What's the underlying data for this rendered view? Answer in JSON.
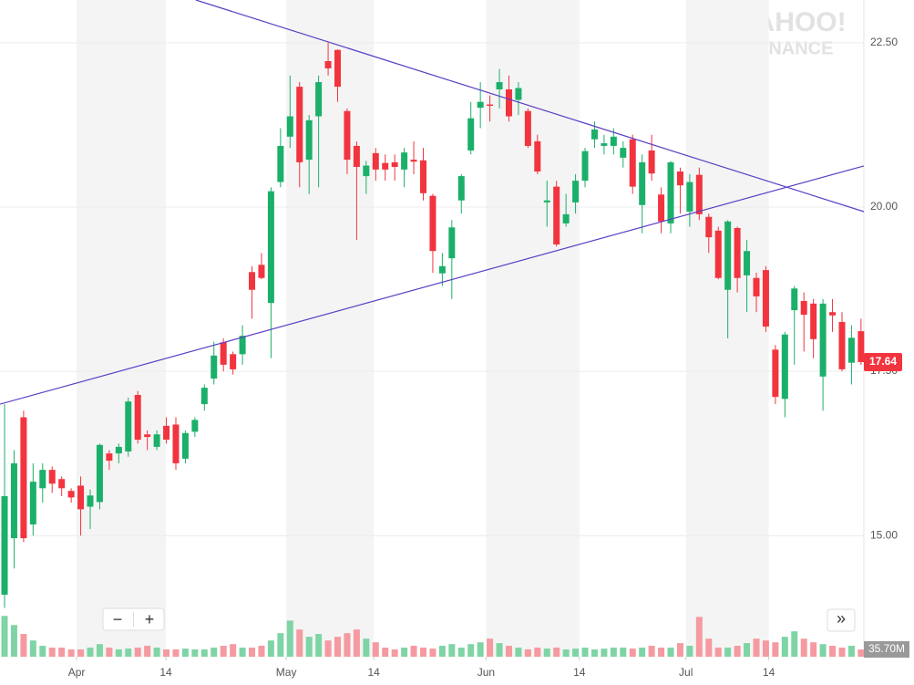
{
  "chart_data": {
    "type": "candlestick",
    "watermark": [
      "YAHOO!",
      "FINANCE"
    ],
    "controls": [
      "−",
      "+",
      "»"
    ],
    "up_color": "#1bb06a",
    "down_color": "#f2343f",
    "volume_up_color": "#7fd4a6",
    "volume_down_color": "#f59aa0",
    "x": [
      0,
      1,
      2,
      3,
      4,
      5,
      6,
      7,
      8,
      9,
      10,
      11,
      12,
      13,
      14,
      15,
      16,
      17,
      18,
      19,
      20,
      21,
      22,
      23,
      24,
      25,
      26,
      27,
      28,
      29,
      30,
      31,
      32,
      33,
      34,
      35,
      36,
      37,
      38,
      39,
      40,
      41,
      42,
      43,
      44,
      45,
      46,
      47,
      48,
      49,
      50,
      51,
      52,
      53,
      54,
      55,
      56,
      57,
      58,
      59,
      60,
      61,
      62,
      63,
      64,
      65,
      66,
      67,
      68,
      69,
      70,
      71,
      72,
      73,
      74,
      75,
      76,
      77,
      78,
      79,
      80,
      81,
      82,
      83,
      84,
      85,
      86,
      87,
      88,
      89,
      90
    ],
    "open": [
      14.1,
      14.96,
      16.8,
      15.17,
      15.72,
      16.0,
      15.86,
      15.68,
      15.76,
      15.44,
      15.51,
      16.25,
      16.25,
      16.28,
      17.14,
      16.54,
      16.35,
      16.67,
      16.69,
      16.17,
      16.58,
      17.0,
      17.39,
      17.94,
      17.76,
      17.76,
      19.01,
      19.12,
      18.54,
      20.38,
      21.07,
      21.83,
      20.72,
      21.38,
      22.22,
      22.39,
      21.46,
      20.93,
      20.47,
      20.82,
      20.67,
      20.68,
      20.57,
      20.72,
      20.71,
      20.17,
      18.99,
      19.22,
      20.1,
      20.86,
      21.51,
      21.56,
      21.79,
      21.79,
      21.63,
      21.46,
      21.0,
      20.07,
      20.31,
      19.75,
      20.07,
      20.4,
      21.03,
      20.93,
      20.93,
      20.75,
      21.03,
      20.03,
      20.86,
      20.19,
      19.75,
      20.54,
      19.93,
      20.49,
      19.85,
      19.64,
      18.74,
      19.68,
      18.96,
      18.92,
      19.04,
      17.83,
      17.08,
      18.43,
      18.57,
      18.53,
      17.42,
      18.4,
      18.25,
      17.63,
      18.11
    ],
    "high": [
      17.0,
      16.3,
      16.9,
      16.1,
      16.1,
      16.05,
      15.9,
      15.72,
      15.9,
      15.7,
      16.4,
      16.3,
      16.4,
      17.1,
      17.2,
      16.6,
      16.6,
      16.8,
      16.8,
      16.6,
      16.8,
      17.3,
      17.95,
      18.0,
      17.8,
      18.2,
      19.1,
      19.3,
      20.3,
      21.2,
      22.0,
      21.9,
      21.4,
      22.0,
      22.5,
      22.4,
      21.5,
      21.0,
      20.7,
      20.9,
      20.8,
      20.8,
      20.9,
      21.0,
      20.9,
      20.2,
      19.3,
      19.8,
      20.5,
      21.6,
      21.9,
      21.7,
      22.1,
      22.0,
      21.9,
      21.5,
      21.1,
      20.4,
      20.4,
      20.2,
      20.5,
      20.9,
      21.3,
      21.1,
      21.2,
      21.0,
      21.1,
      20.8,
      21.1,
      20.3,
      20.7,
      20.6,
      20.5,
      20.6,
      19.9,
      19.7,
      19.8,
      19.7,
      19.5,
      19.0,
      19.1,
      17.9,
      18.1,
      18.8,
      18.7,
      18.6,
      18.6,
      18.6,
      18.4,
      18.2,
      18.3
    ],
    "low": [
      13.9,
      14.5,
      14.9,
      15.0,
      15.5,
      15.65,
      15.6,
      15.5,
      15.0,
      15.1,
      15.4,
      16.0,
      16.1,
      16.2,
      16.4,
      16.3,
      16.3,
      16.4,
      16.0,
      16.1,
      16.5,
      16.9,
      17.3,
      17.5,
      17.45,
      17.6,
      18.3,
      18.9,
      17.7,
      20.3,
      20.9,
      20.3,
      20.2,
      20.3,
      22.0,
      21.6,
      20.5,
      19.5,
      20.2,
      20.4,
      20.4,
      20.4,
      20.3,
      20.5,
      20.1,
      19.0,
      18.8,
      18.6,
      19.9,
      20.8,
      21.2,
      21.3,
      21.5,
      21.3,
      21.4,
      20.9,
      20.5,
      19.7,
      19.4,
      19.7,
      19.9,
      20.3,
      20.9,
      20.8,
      20.8,
      20.6,
      20.2,
      19.6,
      20.4,
      19.6,
      19.6,
      19.9,
      19.7,
      19.8,
      19.3,
      18.9,
      18.0,
      18.7,
      18.4,
      18.4,
      18.1,
      17.0,
      16.8,
      17.6,
      17.8,
      17.7,
      16.9,
      18.1,
      17.5,
      17.3,
      17.6
    ],
    "close": [
      15.6,
      16.1,
      14.96,
      15.82,
      16.0,
      15.79,
      15.72,
      15.58,
      15.4,
      15.61,
      16.38,
      16.14,
      16.35,
      17.04,
      16.46,
      16.5,
      16.54,
      16.46,
      16.1,
      16.56,
      16.76,
      17.25,
      17.74,
      17.6,
      17.53,
      18.04,
      18.74,
      18.92,
      20.24,
      20.93,
      21.38,
      20.68,
      21.32,
      21.9,
      22.11,
      21.83,
      20.72,
      20.61,
      20.63,
      20.57,
      20.57,
      20.61,
      20.83,
      20.69,
      20.21,
      19.33,
      19.1,
      19.69,
      20.47,
      21.35,
      21.6,
      21.54,
      21.9,
      21.38,
      21.81,
      20.93,
      20.54,
      20.1,
      19.43,
      19.89,
      20.4,
      20.85,
      21.18,
      20.97,
      21.07,
      20.9,
      20.31,
      20.68,
      20.51,
      19.78,
      20.68,
      20.33,
      20.38,
      19.89,
      19.54,
      18.92,
      19.78,
      18.92,
      19.33,
      18.64,
      18.18,
      17.11,
      18.06,
      18.76,
      18.36,
      17.99,
      18.53,
      18.35,
      17.53,
      18.01,
      17.64
    ],
    "volume": [
      201,
      156,
      112,
      80,
      54,
      45,
      45,
      36,
      36,
      45,
      62,
      45,
      36,
      40,
      45,
      54,
      45,
      36,
      36,
      40,
      36,
      36,
      45,
      54,
      62,
      45,
      45,
      54,
      80,
      116,
      178,
      134,
      98,
      112,
      80,
      98,
      116,
      134,
      89,
      71,
      45,
      36,
      45,
      54,
      45,
      40,
      54,
      62,
      45,
      62,
      71,
      89,
      67,
      54,
      45,
      36,
      45,
      40,
      45,
      36,
      40,
      45,
      36,
      40,
      45,
      45,
      40,
      45,
      54,
      45,
      45,
      67,
      54,
      196,
      89,
      45,
      45,
      54,
      67,
      89,
      80,
      71,
      98,
      125,
      89,
      71,
      62,
      54,
      45,
      54,
      35.7
    ],
    "volume_label": "35.70M",
    "xlim": [
      -0.48,
      90.3
    ],
    "xticks": [
      {
        "value": 7.57,
        "label": "Apr"
      },
      {
        "value": 16.95,
        "label": "14"
      },
      {
        "value": 29.6,
        "label": "May"
      },
      {
        "value": 38.8,
        "label": "14"
      },
      {
        "value": 50.6,
        "label": "Jun"
      },
      {
        "value": 60.4,
        "label": "14"
      },
      {
        "value": 71.6,
        "label": "Jul"
      },
      {
        "value": 80.3,
        "label": "14"
      }
    ],
    "ylim": [
      13.92,
      23.15
    ],
    "yticks": [
      {
        "value": 15,
        "label": "15.00"
      },
      {
        "value": 17.5,
        "label": "17.50"
      },
      {
        "value": 20,
        "label": "20.00"
      },
      {
        "value": 22.5,
        "label": "22.50"
      }
    ],
    "volume_lim": [
      0,
      220
    ],
    "grid": true,
    "trendlines": [
      {
        "color": "#5b3fc4",
        "x": [
          -0.48,
          90.3
        ],
        "y": [
          17.0,
          20.625
        ]
      },
      {
        "color": "#5b3fc4",
        "x": [
          20.1,
          90.3
        ],
        "y": [
          23.15,
          19.93
        ]
      }
    ]
  }
}
